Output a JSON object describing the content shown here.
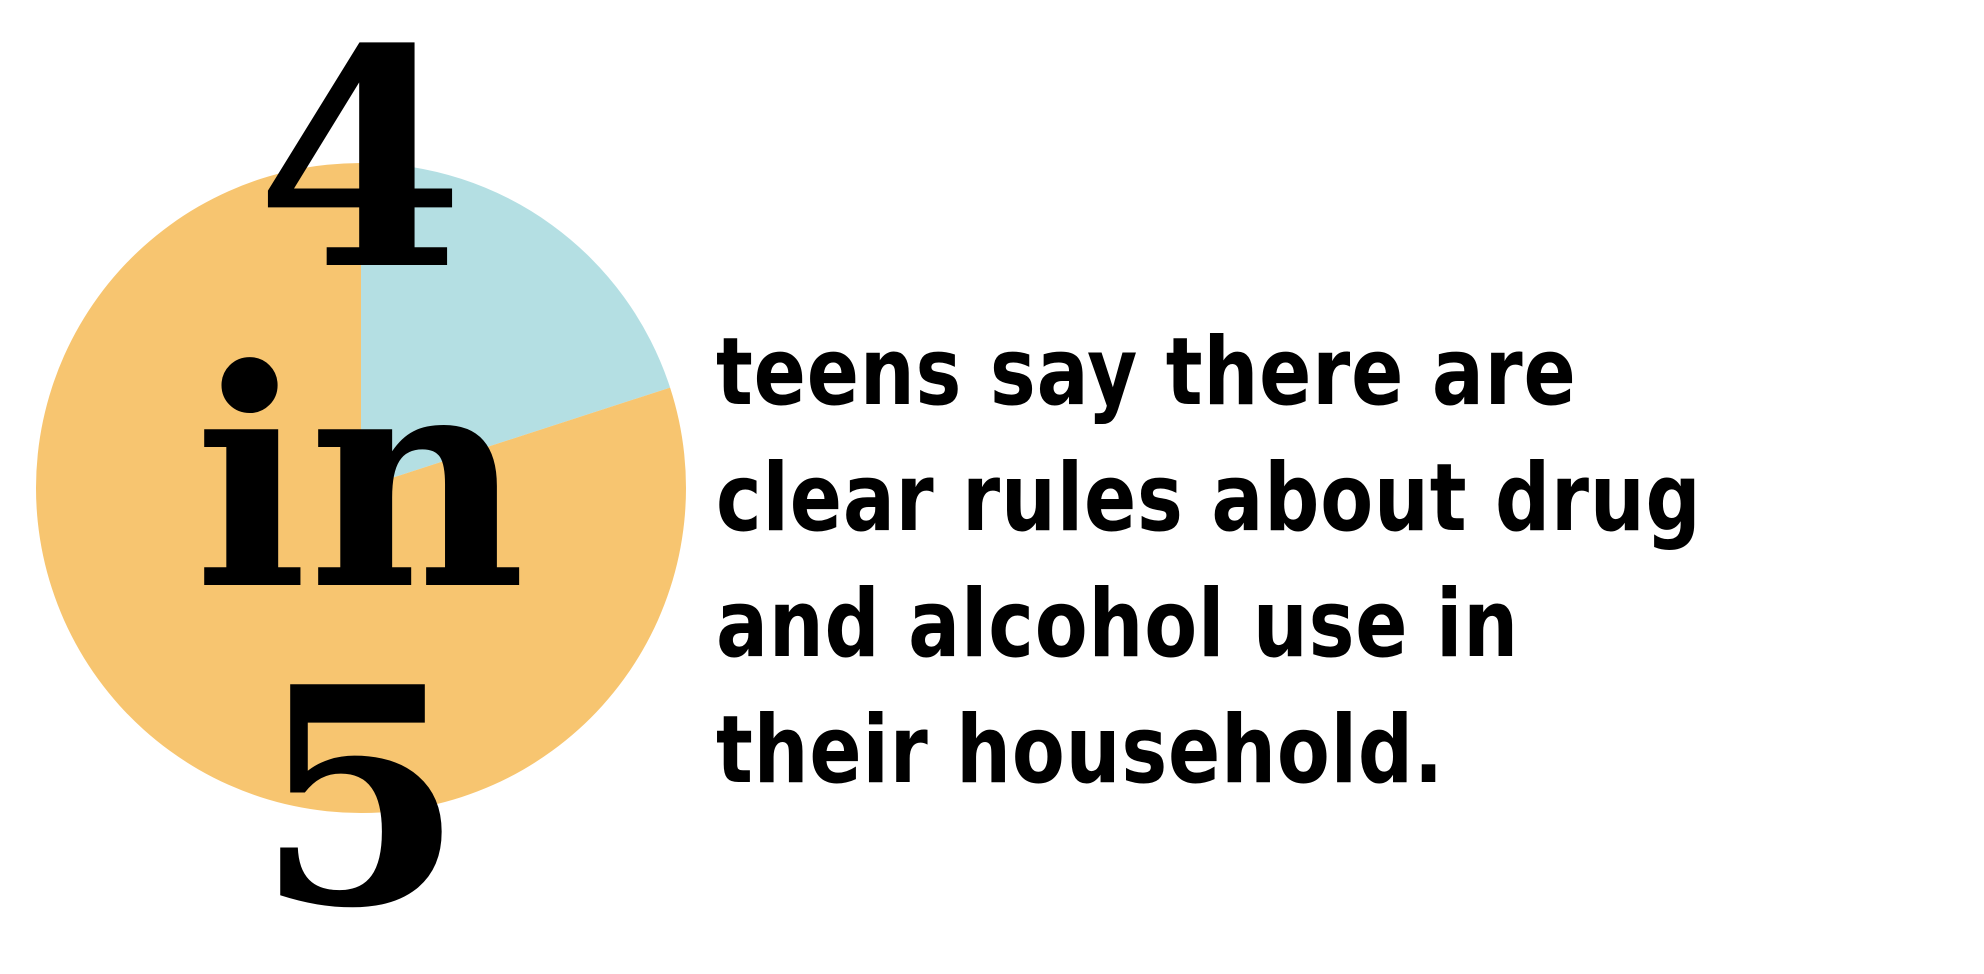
{
  "chart_data": {
    "type": "pie",
    "slices": [
      {
        "value": 4,
        "share": 0.8,
        "color": "#F7C570"
      },
      {
        "value": 1,
        "share": 0.2,
        "color": "#B4DFE3"
      }
    ],
    "total": 5
  },
  "stat": {
    "numerator": "4",
    "connector": "in",
    "denominator": "5"
  },
  "caption": "teens say there are clear rules about drug and alcohol use in their household."
}
